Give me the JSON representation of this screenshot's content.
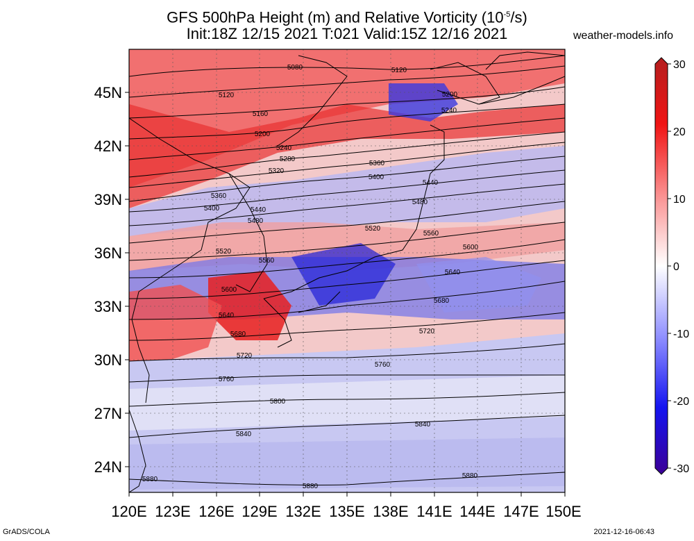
{
  "title_line1": "GFS 500hPa Height (m) and Relative Vorticity (10",
  "title_sup": "-5",
  "title_line1_end": "/s)",
  "title_line2": "Init:18Z 12/15 2021 T:021 Valid:15Z 12/16 2021",
  "brand": "weather-models.info",
  "footer_left": "GrADS/COLA",
  "footer_right": "2021-12-16-06:43",
  "lat_labels": [
    "45N",
    "42N",
    "39N",
    "36N",
    "33N",
    "30N",
    "27N",
    "24N"
  ],
  "lon_labels": [
    "120E",
    "123E",
    "126E",
    "129E",
    "132E",
    "135E",
    "138E",
    "141E",
    "144E",
    "147E",
    "150E"
  ],
  "colorbar": {
    "ticks": [
      "30",
      "20",
      "10",
      "0",
      "-10",
      "-20",
      "-30"
    ],
    "colors": [
      "#b41e1e",
      "#f01414",
      "#fa9090",
      "#ffffff",
      "#9090ff",
      "#1414f0",
      "#3c0096"
    ]
  },
  "contour_labels": [
    "5080",
    "5120",
    "5120",
    "5160",
    "5200",
    "5200",
    "5240",
    "5240",
    "5280",
    "5320",
    "5360",
    "5360",
    "5400",
    "5400",
    "5440",
    "5440",
    "5480",
    "5480",
    "5520",
    "5520",
    "5560",
    "5560",
    "5600",
    "5600",
    "5640",
    "5640",
    "5680",
    "5680",
    "5720",
    "5720",
    "5760",
    "5760",
    "5800",
    "5840",
    "5840",
    "5880",
    "5880",
    "5880"
  ]
}
